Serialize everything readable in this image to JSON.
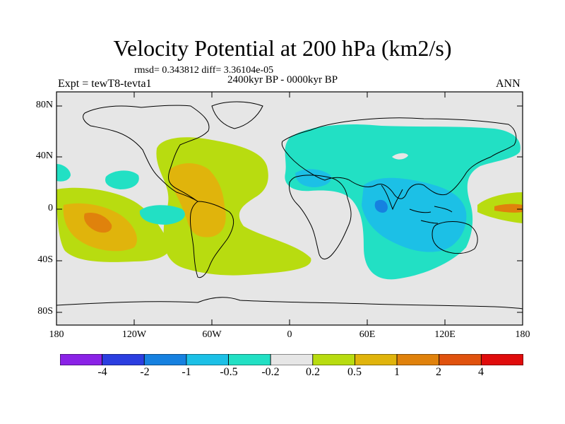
{
  "title": "Velocity Potential at 200 hPa (km2/s)",
  "stats_line": "rmsd= 0.343812 diff= 3.36104e-05",
  "period": "2400kyr BP - 0000kyr BP",
  "experiment": "Expt = tewT8-tevta1",
  "season": "ANN",
  "lat_labels": [
    "80N",
    "40N",
    "0",
    "40S",
    "80S"
  ],
  "lon_labels": [
    "180",
    "120W",
    "60W",
    "0",
    "60E",
    "120E",
    "180"
  ],
  "colorbar": {
    "labels": [
      "-4",
      "-2",
      "-1",
      "-0.5",
      "-0.2",
      "0.2",
      "0.5",
      "1",
      "2",
      "4"
    ],
    "colors": [
      "#8a22e6",
      "#2b3ee0",
      "#1681e0",
      "#1cc0e6",
      "#22e0c4",
      "#e6e6e6",
      "#b8dc10",
      "#e0b40c",
      "#e0820c",
      "#e0520e",
      "#e00c0c"
    ]
  },
  "chart_data": {
    "type": "heatmap",
    "title": "Velocity Potential at 200 hPa (km2/s)",
    "units": "km2/s",
    "x_range": [
      -180,
      180
    ],
    "y_range": [
      -90,
      90
    ],
    "levels": [
      -4,
      -2,
      -1,
      -0.5,
      -0.2,
      0.2,
      0.5,
      1,
      2,
      4
    ],
    "regions": [
      {
        "name": "americas-atlantic-positive",
        "lon_range": [
          -105,
          -15
        ],
        "lat_range": [
          -50,
          50
        ],
        "level": "0.2 to 1"
      },
      {
        "name": "south-pacific-positive",
        "lon_range": [
          -180,
          -95
        ],
        "lat_range": [
          -45,
          12
        ],
        "level": "0.2 to 2"
      },
      {
        "name": "indian-ocean-maritime-negative",
        "lon_range": [
          30,
          140
        ],
        "lat_range": [
          -50,
          20
        ],
        "level": "-0.2 to -1"
      },
      {
        "name": "eurasia-negative",
        "lon_range": [
          0,
          180
        ],
        "lat_range": [
          20,
          60
        ],
        "level": "-0.2 to -0.5"
      },
      {
        "name": "west-pacific-positive",
        "lon_range": [
          150,
          180
        ],
        "lat_range": [
          -10,
          10
        ],
        "level": "0.2 to 2"
      }
    ]
  }
}
